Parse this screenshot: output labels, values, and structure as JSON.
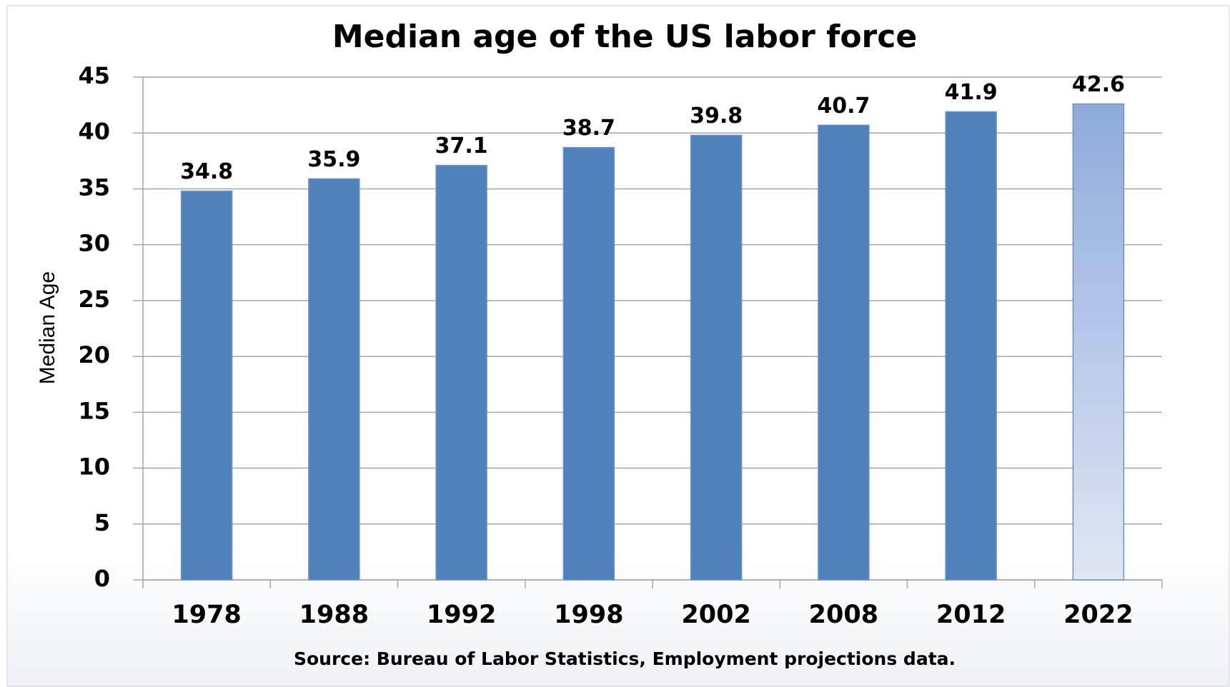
{
  "chart_data": {
    "type": "bar",
    "title": "Median age of the US labor force",
    "ylabel": "Median Age",
    "source": "Source:  Bureau of Labor Statistics, Employment projections data.",
    "categories": [
      "1978",
      "1988",
      "1992",
      "1998",
      "2002",
      "2008",
      "2012",
      "2022"
    ],
    "values": [
      34.8,
      35.9,
      37.1,
      38.7,
      39.8,
      40.7,
      41.9,
      42.6
    ],
    "colors": [
      "#4f81bd",
      "#4f81bd",
      "#4f81bd",
      "#4f81bd",
      "#4f81bd",
      "#4f81bd",
      "#4f81bd",
      {
        "top": "#8eaadb",
        "bottom": "#e0e7f4"
      }
    ],
    "ylim": [
      0,
      45
    ],
    "yticks": [
      0,
      5,
      10,
      15,
      20,
      25,
      30,
      35,
      40,
      45
    ],
    "grid": true
  }
}
